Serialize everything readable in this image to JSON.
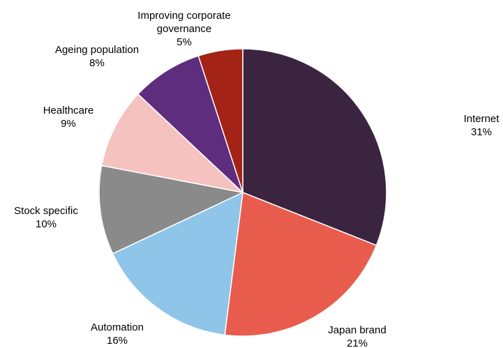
{
  "chart_data": {
    "type": "pie",
    "start_angle_deg": 0,
    "direction": "clockwise",
    "slice_border_color": "#ffffff",
    "slices": [
      {
        "label": "Internet",
        "value": 31,
        "value_label": "31%",
        "color": "#3b2440"
      },
      {
        "label": "Japan brand",
        "value": 21,
        "value_label": "21%",
        "color": "#e85c4e"
      },
      {
        "label": "Automation",
        "value": 16,
        "value_label": "16%",
        "color": "#8fc5e8"
      },
      {
        "label": "Stock specific",
        "value": 10,
        "value_label": "10%",
        "color": "#8a8a8a"
      },
      {
        "label": "Healthcare",
        "value": 9,
        "value_label": "9%",
        "color": "#f5c2c0"
      },
      {
        "label": "Ageing population",
        "value": 8,
        "value_label": "8%",
        "color": "#5e2d7e"
      },
      {
        "label": "Improving corporate governance",
        "value": 5,
        "value_label": "5%",
        "color": "#a32317"
      }
    ]
  }
}
